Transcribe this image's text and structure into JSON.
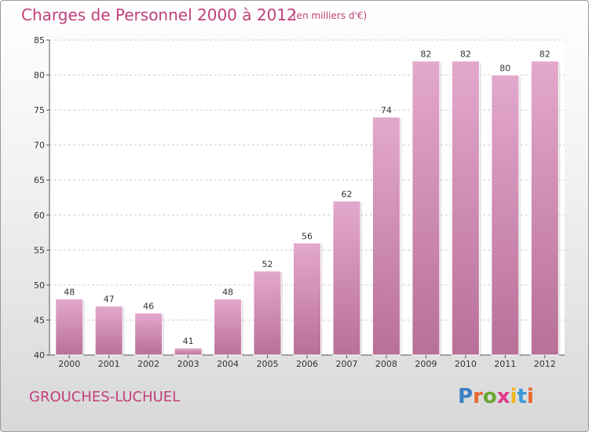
{
  "header": {
    "title": "Charges de Personnel 2000 à 2012",
    "subtitle": "(en milliers d'€)"
  },
  "footer": {
    "commune": "GROUCHES-LUCHUEL",
    "logo": "Proxiti",
    "logo_colors": [
      "#3a7fc2",
      "#e8672a",
      "#6aa830",
      "#e23a8a",
      "#f2b51f",
      "#3a9ad6",
      "#e8672a"
    ]
  },
  "colors": {
    "bar_top": "#e4a8cd",
    "bar_bottom": "#b87098",
    "text_accent": "#c0407a"
  },
  "chart_data": {
    "type": "bar",
    "categories": [
      "2000",
      "2001",
      "2002",
      "2003",
      "2004",
      "2005",
      "2006",
      "2007",
      "2008",
      "2009",
      "2010",
      "2011",
      "2012"
    ],
    "values": [
      48,
      47,
      46,
      41,
      48,
      52,
      56,
      62,
      74,
      82,
      82,
      80,
      82
    ],
    "title": "Charges de Personnel 2000 à 2012",
    "subtitle": "(en milliers d'€)",
    "xlabel": "",
    "ylabel": "",
    "ylim": [
      40,
      85
    ],
    "yticks": [
      40,
      45,
      50,
      55,
      60,
      65,
      70,
      75,
      80,
      85
    ],
    "grid": true,
    "legend": "none"
  }
}
